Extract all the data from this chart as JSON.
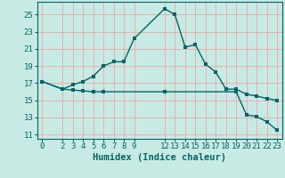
{
  "xlabel": "Humidex (Indice chaleur)",
  "ylabel": "",
  "bg_color": "#c8eae4",
  "grid_color": "#e8b0b0",
  "line1_color": "#006666",
  "line2_color": "#006666",
  "line1_x": [
    0,
    2,
    3,
    4,
    5,
    6,
    7,
    8,
    9,
    12,
    13,
    14,
    15,
    16,
    17,
    18,
    19,
    20,
    21,
    22,
    23
  ],
  "line1_y": [
    17.2,
    16.3,
    16.8,
    17.2,
    17.8,
    19.0,
    19.5,
    19.5,
    22.2,
    25.7,
    25.0,
    21.2,
    21.5,
    19.2,
    18.3,
    16.3,
    16.3,
    15.7,
    15.5,
    15.2,
    15.0
  ],
  "line2_x": [
    0,
    2,
    3,
    4,
    5,
    6,
    12,
    19,
    20,
    21,
    22,
    23
  ],
  "line2_y": [
    17.2,
    16.3,
    16.2,
    16.1,
    16.0,
    16.0,
    16.0,
    16.0,
    13.3,
    13.1,
    12.5,
    11.5
  ],
  "yticks": [
    11,
    13,
    15,
    17,
    19,
    21,
    23,
    25
  ],
  "xticks": [
    0,
    2,
    3,
    4,
    5,
    6,
    7,
    8,
    9,
    12,
    13,
    14,
    15,
    16,
    17,
    18,
    19,
    20,
    21,
    22,
    23
  ],
  "xlim": [
    -0.5,
    23.5
  ],
  "ylim": [
    10.5,
    26.5
  ],
  "tick_fontsize": 6.5,
  "xlabel_fontsize": 7.5
}
